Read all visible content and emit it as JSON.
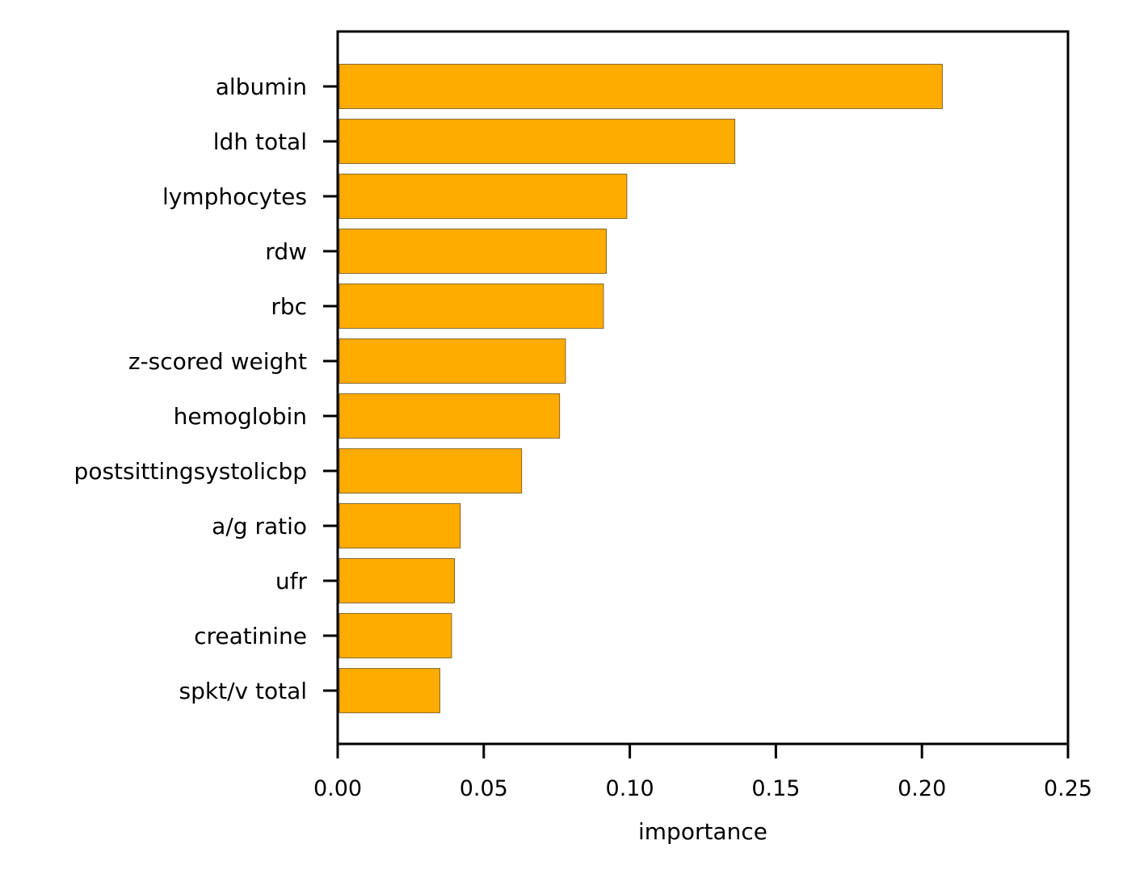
{
  "chart_data": {
    "type": "bar",
    "orientation": "horizontal",
    "categories": [
      "albumin",
      "ldh total",
      "lymphocytes",
      "rdw",
      "rbc",
      "z-scored weight",
      "hemoglobin",
      "postsittingsystolicbp",
      "a/g ratio",
      "ufr",
      "creatinine",
      "spkt/v total"
    ],
    "values": [
      0.207,
      0.136,
      0.099,
      0.092,
      0.091,
      0.078,
      0.076,
      0.063,
      0.042,
      0.04,
      0.039,
      0.035
    ],
    "title": "",
    "xlabel": "importance",
    "ylabel": "",
    "xlim": [
      0,
      0.25
    ],
    "xticks": [
      "0.00",
      "0.05",
      "0.10",
      "0.15",
      "0.20",
      "0.25"
    ],
    "grid": false,
    "bar_color": "#ffab00",
    "axis_color": "#000000"
  }
}
